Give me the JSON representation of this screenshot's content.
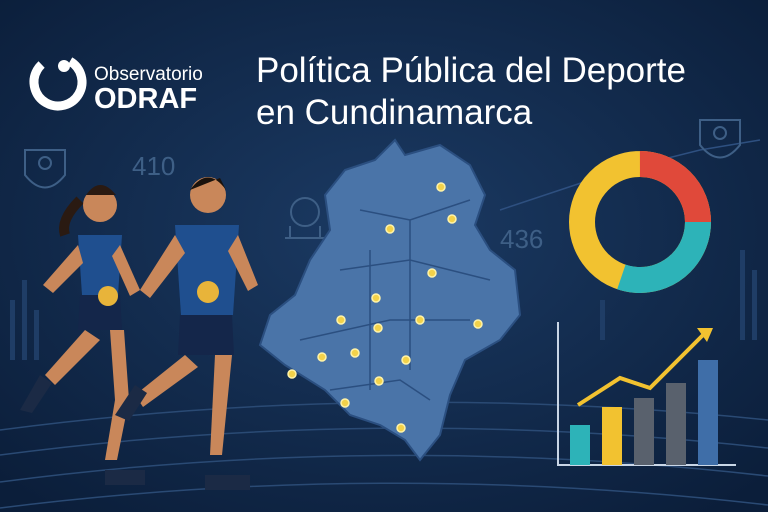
{
  "brand": {
    "line1": "Observatorio",
    "line2": "ODRAF"
  },
  "title": {
    "lines": [
      "Política Pública del Deporte",
      "en Cundinamarca"
    ]
  },
  "background_numbers": [
    410,
    436
  ]
}
